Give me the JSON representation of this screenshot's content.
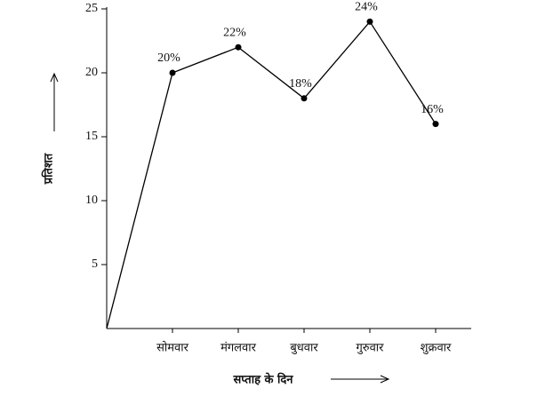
{
  "chart_data": {
    "type": "line",
    "x_label": "सप्ताह के दिन",
    "y_label": "प्रतिशत",
    "categories": [
      null,
      "सोमवार",
      "मंगलवार",
      "बुधवार",
      "गुरुवार",
      "शुक्रवार"
    ],
    "values": [
      0,
      20,
      22,
      18,
      24,
      16
    ],
    "value_labels": [
      null,
      "20%",
      "22%",
      "18%",
      "24%",
      "16%"
    ],
    "color": "#000000",
    "ylim": [
      0,
      25
    ],
    "yticks": [
      5,
      10,
      15,
      20,
      25
    ],
    "grid": false
  }
}
